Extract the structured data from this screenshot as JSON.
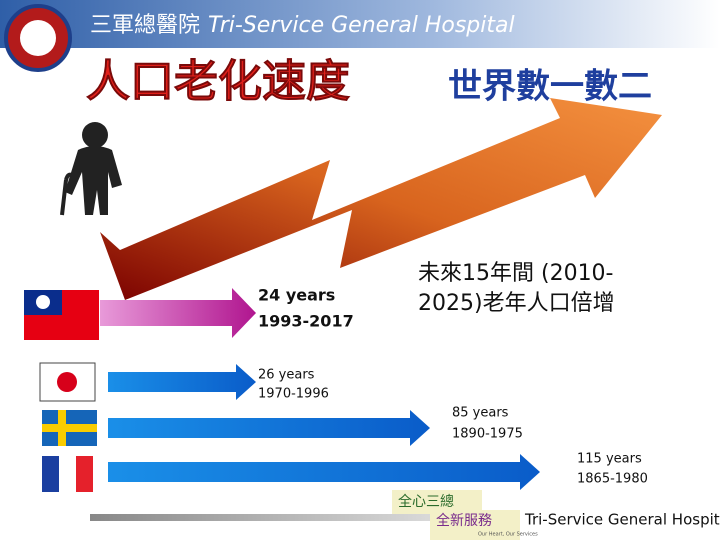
{
  "header": {
    "logo_text": "三軍總醫院",
    "title_en": "Tri-Service General Hospital"
  },
  "title": {
    "highlight": "人口老化速度",
    "rest": "世界數一數二"
  },
  "note": [
    "未來15年間 (2010-",
    "2025)老年人口倍增"
  ],
  "countries": [
    {
      "years": "24 years",
      "period": "1993-2017"
    },
    {
      "years": "26 years",
      "period": "1970-1996"
    },
    {
      "years": "85 years",
      "period": "1890-1975"
    },
    {
      "years": "115 years",
      "period": "1865-1980"
    }
  ],
  "footer": {
    "badge_top": "全心三總",
    "badge_bottom": "全新服務",
    "badge_small": "Our Heart, Our Services",
    "hospital": "Tri-Service General Hospital"
  }
}
